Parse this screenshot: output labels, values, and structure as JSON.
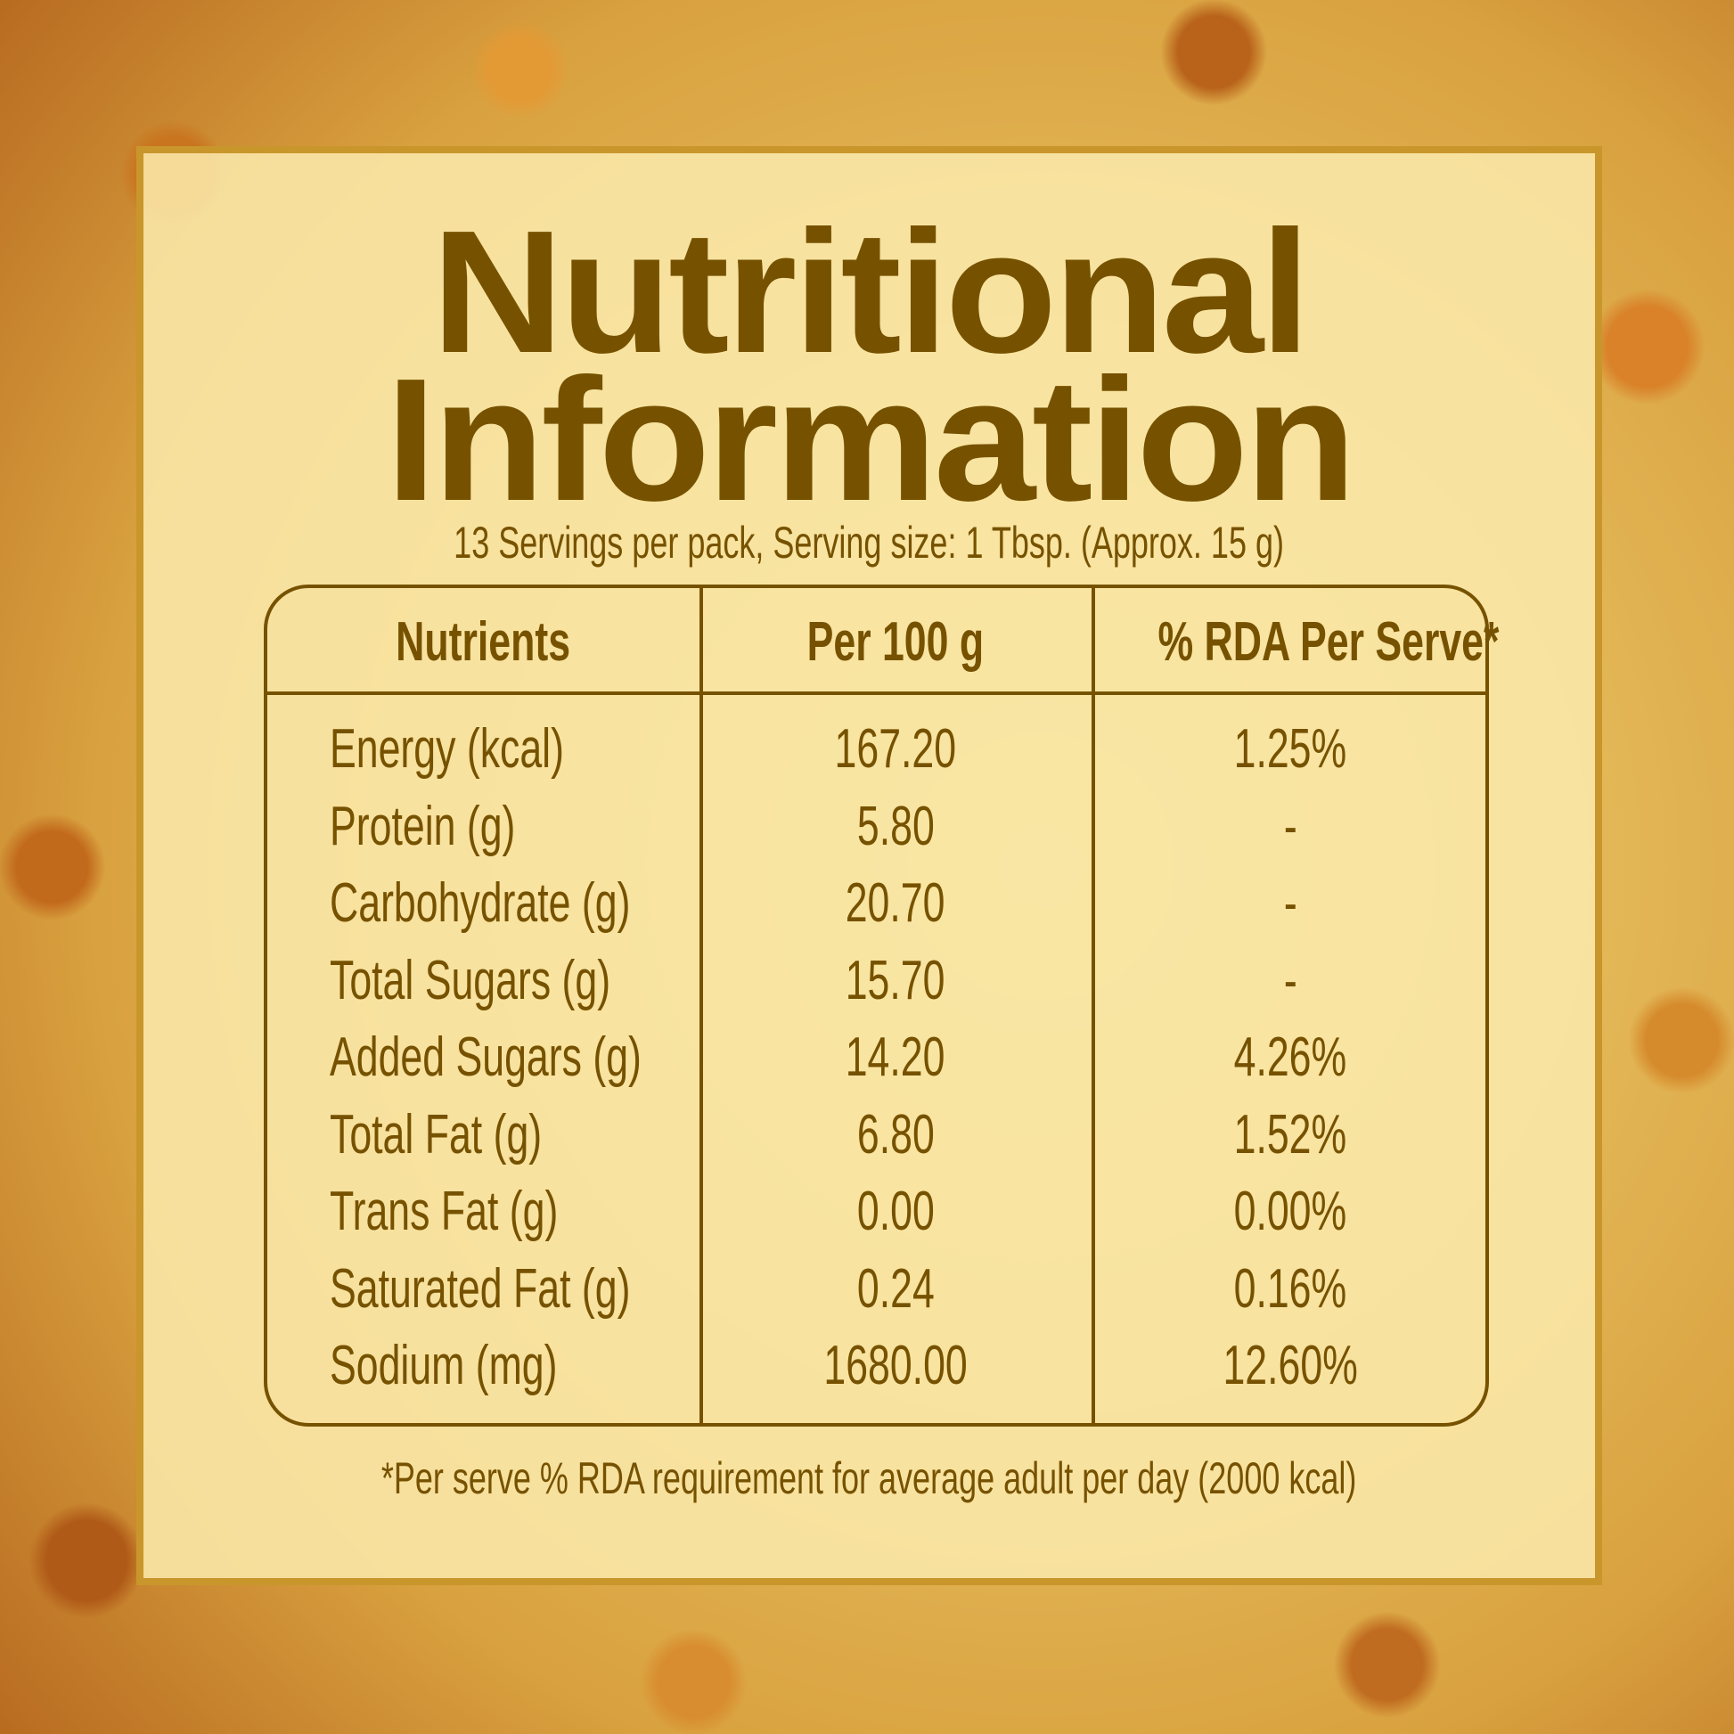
{
  "title_line1": "Nutritional",
  "title_line2": "Information",
  "serving_info": "13 Servings per pack, Serving size: 1 Tbsp. (Approx. 15 g)",
  "table": {
    "headers": [
      "Nutrients",
      "Per 100 g",
      "% RDA Per Serve*"
    ],
    "rows": [
      [
        "Energy (kcal)",
        "167.20",
        "1.25%"
      ],
      [
        "Protein (g)",
        "5.80",
        "-"
      ],
      [
        "Carbohydrate (g)",
        "20.70",
        "-"
      ],
      [
        "Total Sugars (g)",
        "15.70",
        "-"
      ],
      [
        "Added Sugars (g)",
        "14.20",
        "4.26%"
      ],
      [
        "Total Fat (g)",
        "6.80",
        "1.52%"
      ],
      [
        "Trans Fat (g)",
        "0.00",
        "0.00%"
      ],
      [
        "Saturated Fat (g)",
        "0.24",
        "0.16%"
      ],
      [
        "Sodium (mg)",
        "1680.00",
        "12.60%"
      ]
    ]
  },
  "footnote": "*Per serve % RDA requirement for average adult per day (2000 kcal)",
  "colors": {
    "text": "#765200",
    "frame": "#c9962c",
    "panel": "#fae8aa"
  }
}
